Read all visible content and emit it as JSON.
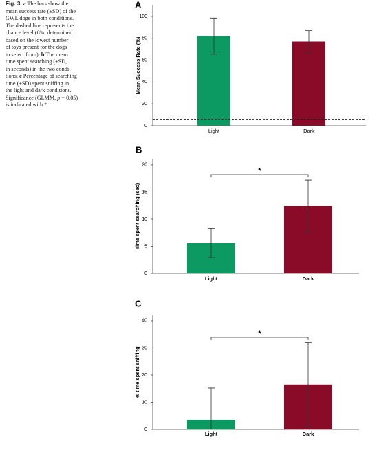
{
  "caption": {
    "lines": [
      [
        {
          "text": "Fig. 3",
          "bold": true,
          "sans": true
        },
        {
          "text": "  "
        },
        {
          "text": "a",
          "bold": true
        },
        {
          "text": " The bars show the"
        }
      ],
      [
        {
          "text": "mean success rate (±SD) of the"
        }
      ],
      [
        {
          "text": "GWL dogs in both conditions."
        }
      ],
      [
        {
          "text": "The dashed line represents the"
        }
      ],
      [
        {
          "text": "chance level (6%, determined"
        }
      ],
      [
        {
          "text": "based on the lowest number"
        }
      ],
      [
        {
          "text": "of toys present for the dogs"
        }
      ],
      [
        {
          "text": "to select from). "
        },
        {
          "text": "b",
          "bold": true
        },
        {
          "text": " The mean"
        }
      ],
      [
        {
          "text": "time spent searching (±SD,"
        }
      ],
      [
        {
          "text": "in seconds) in the two condi-"
        }
      ],
      [
        {
          "text": "tions. "
        },
        {
          "text": "c",
          "bold": true
        },
        {
          "text": " Percentage of searching"
        }
      ],
      [
        {
          "text": "time (±SD) spent sniffing in"
        }
      ],
      [
        {
          "text": "the light and dark conditions."
        }
      ],
      [
        {
          "text": "Significance (GLMM, "
        },
        {
          "text": "p",
          "italic": true
        },
        {
          "text": " = 0.05)"
        }
      ],
      [
        {
          "text": "is indicated with *"
        }
      ]
    ]
  },
  "chart_data": [
    {
      "type": "bar",
      "panel_label": "A",
      "ylabel": "Mean Success Rate (%)",
      "categories": [
        "Light",
        "Dark"
      ],
      "values": [
        82,
        77
      ],
      "errors": [
        16.5,
        10
      ],
      "colors": [
        "#0c9a62",
        "#8a0b28"
      ],
      "ylim": [
        0,
        110
      ],
      "yticks": [
        0,
        20,
        40,
        60,
        80,
        100
      ],
      "reference_line": 6
    },
    {
      "type": "bar",
      "panel_label": "B",
      "ylabel": "Time spent searching (sec)",
      "categories": [
        "Light",
        "Dark"
      ],
      "values": [
        5.6,
        12.4
      ],
      "errors": [
        2.7,
        4.8
      ],
      "colors": [
        "#0c9a62",
        "#8a0b28"
      ],
      "ylim": [
        0,
        21
      ],
      "yticks": [
        0,
        5,
        10,
        15,
        20
      ],
      "significance": "*"
    },
    {
      "type": "bar",
      "panel_label": "C",
      "ylabel": "% time spent sniffing",
      "categories": [
        "Light",
        "Dark"
      ],
      "values": [
        3.5,
        16.5
      ],
      "errors": [
        11.7,
        15.5
      ],
      "colors": [
        "#0c9a62",
        "#8a0b28"
      ],
      "ylim": [
        0,
        42
      ],
      "yticks": [
        0,
        10,
        20,
        30,
        40
      ],
      "significance": "*"
    }
  ]
}
